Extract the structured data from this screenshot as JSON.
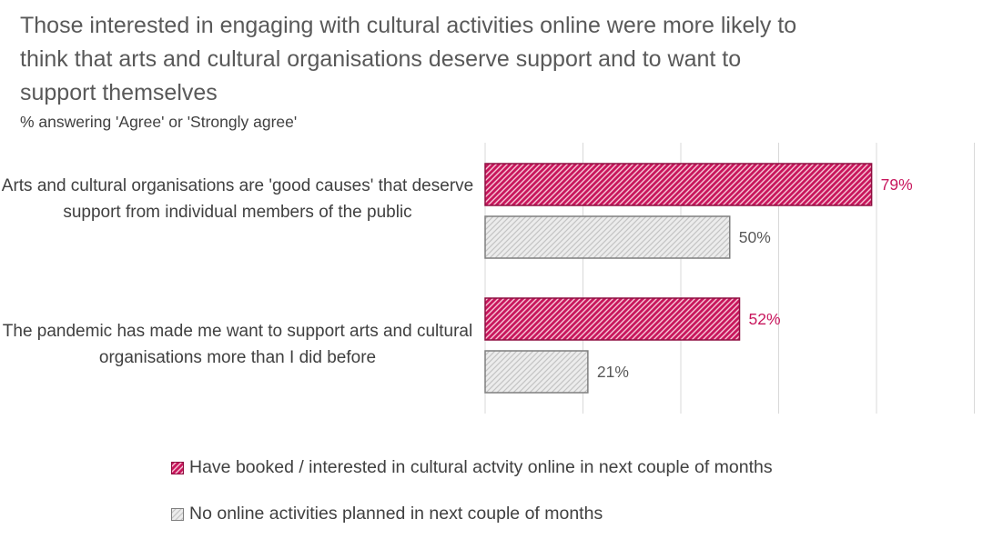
{
  "chart_data": {
    "type": "bar",
    "orientation": "horizontal",
    "title": "Those interested in engaging with cultural activities online were more likely to think that arts and cultural organisations deserve support and to want to support themselves",
    "subtitle": "%  answering 'Agree' or 'Strongly agree'",
    "categories": [
      "Arts and cultural organisations are 'good causes' that deserve support from individual members of the public",
      "The pandemic has made me want to support arts and cultural organisations more than I did before"
    ],
    "series": [
      {
        "name": "Have booked / interested in cultural actvity online in next couple of months",
        "values": [
          79,
          52
        ],
        "labels": [
          "79%",
          "52%"
        ],
        "color": "#C8175D",
        "pattern": "dense-hatch"
      },
      {
        "name": "No online activities planned in next couple of months",
        "values": [
          50,
          21
        ],
        "labels": [
          "50%",
          "21%"
        ],
        "color": "#7F7F7F",
        "pattern": "light-hatch"
      }
    ],
    "xlim": [
      0,
      100
    ],
    "grid": "vertical",
    "legend": "bottom"
  }
}
